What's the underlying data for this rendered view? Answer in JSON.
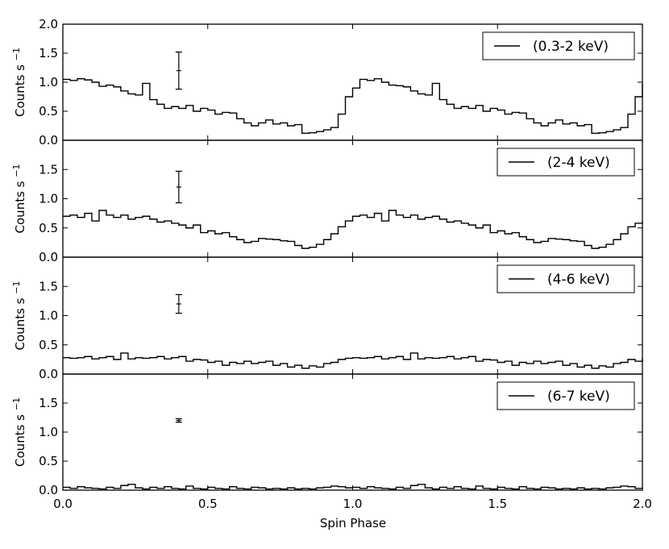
{
  "figure": {
    "xlabel": "Spin Phase",
    "ylabel": "Counts s$^{-1}$",
    "ylabel_display": "Counts s",
    "ylabel_superscript": "−1"
  },
  "chart_data": [
    {
      "type": "line",
      "step": true,
      "legend": "(0.3-2 keV)",
      "legend_position": "top-right",
      "xlabel": "",
      "ylabel": "Counts s^-1",
      "xlim": [
        0,
        2
      ],
      "ylim": [
        0,
        2
      ],
      "xticks": [
        "",
        "",
        "",
        "",
        ""
      ],
      "yticks": [
        "0.0",
        "0.5",
        "1.0",
        "1.5",
        "2.0"
      ],
      "x": [
        0.0,
        0.025,
        0.05,
        0.075,
        0.1,
        0.125,
        0.15,
        0.175,
        0.2,
        0.225,
        0.25,
        0.275,
        0.3,
        0.325,
        0.35,
        0.375,
        0.4,
        0.425,
        0.45,
        0.475,
        0.5,
        0.525,
        0.55,
        0.575,
        0.6,
        0.625,
        0.65,
        0.675,
        0.7,
        0.725,
        0.75,
        0.775,
        0.8,
        0.825,
        0.85,
        0.875,
        0.9,
        0.925,
        0.95,
        0.975,
        1.0,
        1.025,
        1.05,
        1.075,
        1.1,
        1.125,
        1.15,
        1.175,
        1.2,
        1.225,
        1.25,
        1.275,
        1.3,
        1.325,
        1.35,
        1.375,
        1.4,
        1.425,
        1.45,
        1.475,
        1.5,
        1.525,
        1.55,
        1.575,
        1.6,
        1.625,
        1.65,
        1.675,
        1.7,
        1.725,
        1.75,
        1.775,
        1.8,
        1.825,
        1.85,
        1.875,
        1.9,
        1.925,
        1.95,
        1.975
      ],
      "y": [
        1.05,
        1.03,
        1.06,
        1.04,
        1.0,
        0.93,
        0.95,
        0.92,
        0.85,
        0.8,
        0.78,
        0.98,
        0.7,
        0.62,
        0.55,
        0.58,
        0.55,
        0.6,
        0.5,
        0.55,
        0.52,
        0.45,
        0.48,
        0.47,
        0.37,
        0.3,
        0.25,
        0.3,
        0.35,
        0.28,
        0.3,
        0.25,
        0.27,
        0.12,
        0.13,
        0.15,
        0.18,
        0.22,
        0.45,
        0.75,
        0.9,
        1.05,
        1.03,
        1.06,
        1.0,
        0.95,
        0.94,
        0.92,
        0.85,
        0.8,
        0.78,
        0.98,
        0.7,
        0.62,
        0.55,
        0.58,
        0.55,
        0.6,
        0.5,
        0.55,
        0.52,
        0.45,
        0.48,
        0.47,
        0.37,
        0.3,
        0.25,
        0.3,
        0.35,
        0.28,
        0.3,
        0.25,
        0.27,
        0.12,
        0.13,
        0.15,
        0.18,
        0.22,
        0.45,
        0.75
      ],
      "x_end": 2.0,
      "y_end": 0.98,
      "errorbar": {
        "x": 0.4,
        "y": 1.2,
        "yerr": 0.32
      }
    },
    {
      "type": "line",
      "step": true,
      "legend": "(2-4 keV)",
      "legend_position": "top-right",
      "xlim": [
        0,
        2
      ],
      "ylim": [
        0,
        2
      ],
      "xticks": [
        "",
        "",
        "",
        "",
        ""
      ],
      "yticks": [
        "0.0",
        "0.5",
        "1.0",
        "1.5",
        ""
      ],
      "x": [
        0.0,
        0.025,
        0.05,
        0.075,
        0.1,
        0.125,
        0.15,
        0.175,
        0.2,
        0.225,
        0.25,
        0.275,
        0.3,
        0.325,
        0.35,
        0.375,
        0.4,
        0.425,
        0.45,
        0.475,
        0.5,
        0.525,
        0.55,
        0.575,
        0.6,
        0.625,
        0.65,
        0.675,
        0.7,
        0.725,
        0.75,
        0.775,
        0.8,
        0.825,
        0.85,
        0.875,
        0.9,
        0.925,
        0.95,
        0.975,
        1.0,
        1.025,
        1.05,
        1.075,
        1.1,
        1.125,
        1.15,
        1.175,
        1.2,
        1.225,
        1.25,
        1.275,
        1.3,
        1.325,
        1.35,
        1.375,
        1.4,
        1.425,
        1.45,
        1.475,
        1.5,
        1.525,
        1.55,
        1.575,
        1.6,
        1.625,
        1.65,
        1.675,
        1.7,
        1.725,
        1.75,
        1.775,
        1.8,
        1.825,
        1.85,
        1.875,
        1.9,
        1.925,
        1.95,
        1.975
      ],
      "y": [
        0.7,
        0.72,
        0.68,
        0.75,
        0.62,
        0.8,
        0.72,
        0.68,
        0.72,
        0.65,
        0.68,
        0.7,
        0.65,
        0.6,
        0.62,
        0.58,
        0.55,
        0.5,
        0.55,
        0.42,
        0.45,
        0.4,
        0.42,
        0.35,
        0.3,
        0.25,
        0.27,
        0.32,
        0.31,
        0.3,
        0.28,
        0.27,
        0.2,
        0.15,
        0.17,
        0.22,
        0.3,
        0.4,
        0.52,
        0.62,
        0.7,
        0.72,
        0.68,
        0.75,
        0.62,
        0.8,
        0.72,
        0.68,
        0.72,
        0.65,
        0.68,
        0.7,
        0.65,
        0.6,
        0.62,
        0.58,
        0.55,
        0.5,
        0.55,
        0.42,
        0.45,
        0.4,
        0.42,
        0.35,
        0.3,
        0.25,
        0.27,
        0.32,
        0.31,
        0.3,
        0.28,
        0.27,
        0.2,
        0.15,
        0.17,
        0.22,
        0.3,
        0.4,
        0.52,
        0.58
      ],
      "x_end": 2.0,
      "y_end": 0.6,
      "errorbar": {
        "x": 0.4,
        "y": 1.2,
        "yerr": 0.27
      }
    },
    {
      "type": "line",
      "step": true,
      "legend": "(4-6 keV)",
      "legend_position": "top-right",
      "xlim": [
        0,
        2
      ],
      "ylim": [
        0,
        2
      ],
      "xticks": [
        "",
        "",
        "",
        "",
        ""
      ],
      "yticks": [
        "0.0",
        "0.5",
        "1.0",
        "1.5",
        ""
      ],
      "x": [
        0.0,
        0.025,
        0.05,
        0.075,
        0.1,
        0.125,
        0.15,
        0.175,
        0.2,
        0.225,
        0.25,
        0.275,
        0.3,
        0.325,
        0.35,
        0.375,
        0.4,
        0.425,
        0.45,
        0.475,
        0.5,
        0.525,
        0.55,
        0.575,
        0.6,
        0.625,
        0.65,
        0.675,
        0.7,
        0.725,
        0.75,
        0.775,
        0.8,
        0.825,
        0.85,
        0.875,
        0.9,
        0.925,
        0.95,
        0.975,
        1.0,
        1.025,
        1.05,
        1.075,
        1.1,
        1.125,
        1.15,
        1.175,
        1.2,
        1.225,
        1.25,
        1.275,
        1.3,
        1.325,
        1.35,
        1.375,
        1.4,
        1.425,
        1.45,
        1.475,
        1.5,
        1.525,
        1.55,
        1.575,
        1.6,
        1.625,
        1.65,
        1.675,
        1.7,
        1.725,
        1.75,
        1.775,
        1.8,
        1.825,
        1.85,
        1.875,
        1.9,
        1.925,
        1.95,
        1.975
      ],
      "y": [
        0.28,
        0.27,
        0.28,
        0.3,
        0.26,
        0.28,
        0.3,
        0.25,
        0.36,
        0.26,
        0.28,
        0.27,
        0.28,
        0.3,
        0.26,
        0.28,
        0.3,
        0.22,
        0.25,
        0.24,
        0.2,
        0.22,
        0.15,
        0.2,
        0.18,
        0.22,
        0.18,
        0.2,
        0.22,
        0.15,
        0.18,
        0.12,
        0.15,
        0.1,
        0.14,
        0.12,
        0.18,
        0.2,
        0.25,
        0.27,
        0.28,
        0.27,
        0.28,
        0.3,
        0.26,
        0.28,
        0.3,
        0.25,
        0.36,
        0.26,
        0.28,
        0.27,
        0.28,
        0.3,
        0.26,
        0.28,
        0.3,
        0.22,
        0.25,
        0.24,
        0.2,
        0.22,
        0.15,
        0.2,
        0.18,
        0.22,
        0.18,
        0.2,
        0.22,
        0.15,
        0.18,
        0.12,
        0.15,
        0.1,
        0.14,
        0.12,
        0.18,
        0.2,
        0.25,
        0.22
      ],
      "x_end": 2.0,
      "y_end": 0.27,
      "errorbar": {
        "x": 0.4,
        "y": 1.2,
        "yerr": 0.16
      }
    },
    {
      "type": "line",
      "step": true,
      "legend": "(6-7 keV)",
      "legend_position": "top-right",
      "xlabel": "Spin Phase",
      "xlim": [
        0,
        2
      ],
      "ylim": [
        0,
        2
      ],
      "xticks": [
        "0.0",
        "0.5",
        "1.0",
        "1.5",
        "2.0"
      ],
      "yticks": [
        "0.0",
        "0.5",
        "1.0",
        "1.5",
        ""
      ],
      "x": [
        0.0,
        0.025,
        0.05,
        0.075,
        0.1,
        0.125,
        0.15,
        0.175,
        0.2,
        0.225,
        0.25,
        0.275,
        0.3,
        0.325,
        0.35,
        0.375,
        0.4,
        0.425,
        0.45,
        0.475,
        0.5,
        0.525,
        0.55,
        0.575,
        0.6,
        0.625,
        0.65,
        0.675,
        0.7,
        0.725,
        0.75,
        0.775,
        0.8,
        0.825,
        0.85,
        0.875,
        0.9,
        0.925,
        0.95,
        0.975,
        1.0,
        1.025,
        1.05,
        1.075,
        1.1,
        1.125,
        1.15,
        1.175,
        1.2,
        1.225,
        1.25,
        1.275,
        1.3,
        1.325,
        1.35,
        1.375,
        1.4,
        1.425,
        1.45,
        1.475,
        1.5,
        1.525,
        1.55,
        1.575,
        1.6,
        1.625,
        1.65,
        1.675,
        1.7,
        1.725,
        1.75,
        1.775,
        1.8,
        1.825,
        1.85,
        1.875,
        1.9,
        1.925,
        1.95,
        1.975
      ],
      "y": [
        0.05,
        0.03,
        0.06,
        0.04,
        0.03,
        0.02,
        0.05,
        0.03,
        0.08,
        0.1,
        0.04,
        0.02,
        0.05,
        0.03,
        0.06,
        0.03,
        0.02,
        0.07,
        0.03,
        0.02,
        0.05,
        0.03,
        0.02,
        0.06,
        0.03,
        0.02,
        0.05,
        0.04,
        0.02,
        0.03,
        0.02,
        0.04,
        0.02,
        0.03,
        0.02,
        0.04,
        0.05,
        0.07,
        0.06,
        0.04,
        0.05,
        0.03,
        0.06,
        0.04,
        0.03,
        0.02,
        0.05,
        0.03,
        0.08,
        0.1,
        0.04,
        0.02,
        0.05,
        0.03,
        0.06,
        0.03,
        0.02,
        0.07,
        0.03,
        0.02,
        0.05,
        0.03,
        0.02,
        0.06,
        0.03,
        0.02,
        0.05,
        0.04,
        0.02,
        0.03,
        0.02,
        0.04,
        0.02,
        0.03,
        0.02,
        0.04,
        0.05,
        0.07,
        0.06,
        0.03
      ],
      "x_end": 2.0,
      "y_end": 0.04,
      "errorbar": {
        "x": 0.4,
        "y": 1.2,
        "yerr": 0.03
      }
    }
  ]
}
